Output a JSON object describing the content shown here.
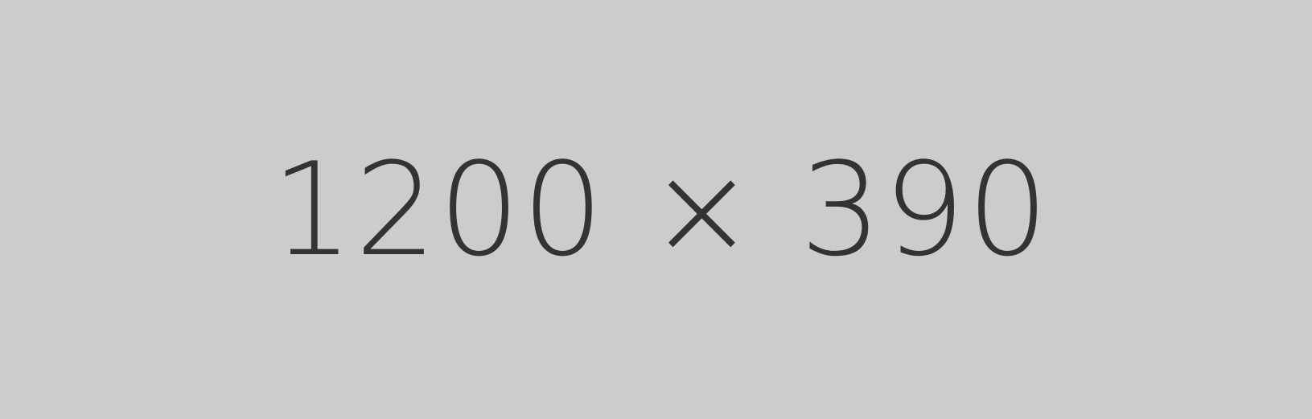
{
  "placeholder": {
    "label": "1200 × 390",
    "background_color": "#cccccc",
    "text_color": "#333333"
  }
}
